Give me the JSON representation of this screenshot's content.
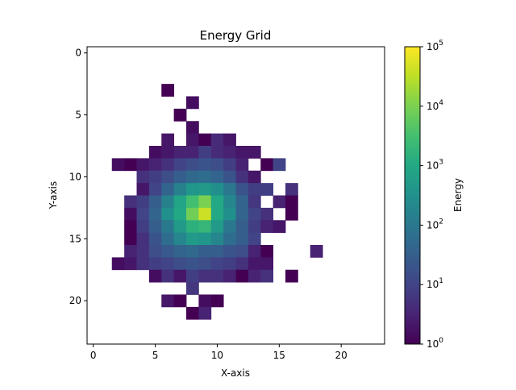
{
  "chart_data": {
    "type": "heatmap",
    "title": "Energy Grid",
    "xlabel": "X-axis",
    "ylabel": "Y-axis",
    "colorbar_label": "Energy",
    "colorbar_scale": "log",
    "colormap": "viridis",
    "x_ticks": [
      0,
      5,
      10,
      15,
      20
    ],
    "y_ticks": [
      0,
      5,
      10,
      15,
      20
    ],
    "colorbar_ticks": [
      {
        "base": "10",
        "exp": "0",
        "value": 1
      },
      {
        "base": "10",
        "exp": "1",
        "value": 10
      },
      {
        "base": "10",
        "exp": "2",
        "value": 100
      },
      {
        "base": "10",
        "exp": "3",
        "value": 1000
      },
      {
        "base": "10",
        "exp": "4",
        "value": 10000
      },
      {
        "base": "10",
        "exp": "5",
        "value": 100000
      }
    ],
    "xlim": [
      -0.5,
      23.5
    ],
    "ylim": [
      23.5,
      -0.5
    ],
    "vmin": 1,
    "vmax": 100000,
    "cells": [
      [
        6,
        3,
        1
      ],
      [
        8,
        4,
        1.5
      ],
      [
        7,
        5,
        1
      ],
      [
        8,
        6,
        1.5
      ],
      [
        6,
        7,
        2
      ],
      [
        8,
        7,
        2
      ],
      [
        9,
        7,
        1
      ],
      [
        10,
        7,
        4
      ],
      [
        11,
        7,
        2
      ],
      [
        5,
        8,
        1.5
      ],
      [
        6,
        8,
        2
      ],
      [
        7,
        8,
        3
      ],
      [
        8,
        8,
        3
      ],
      [
        9,
        8,
        8
      ],
      [
        10,
        8,
        4
      ],
      [
        11,
        8,
        3
      ],
      [
        12,
        8,
        2
      ],
      [
        13,
        8,
        2
      ],
      [
        2,
        9,
        1.5
      ],
      [
        3,
        9,
        1
      ],
      [
        4,
        9,
        2
      ],
      [
        5,
        9,
        3
      ],
      [
        6,
        9,
        5
      ],
      [
        7,
        9,
        10
      ],
      [
        8,
        9,
        15
      ],
      [
        9,
        9,
        20
      ],
      [
        10,
        9,
        15
      ],
      [
        11,
        9,
        8
      ],
      [
        12,
        9,
        3
      ],
      [
        14,
        9,
        1
      ],
      [
        15,
        9,
        10
      ],
      [
        4,
        10,
        5
      ],
      [
        5,
        10,
        8
      ],
      [
        6,
        10,
        15
      ],
      [
        7,
        10,
        30
      ],
      [
        8,
        10,
        50
      ],
      [
        9,
        10,
        60
      ],
      [
        10,
        10,
        40
      ],
      [
        11,
        10,
        20
      ],
      [
        12,
        10,
        5
      ],
      [
        13,
        10,
        2
      ],
      [
        4,
        11,
        2
      ],
      [
        5,
        11,
        10
      ],
      [
        6,
        11,
        40
      ],
      [
        7,
        11,
        150
      ],
      [
        8,
        11,
        400
      ],
      [
        9,
        11,
        500
      ],
      [
        10,
        11,
        300
      ],
      [
        11,
        11,
        100
      ],
      [
        12,
        11,
        20
      ],
      [
        13,
        11,
        8
      ],
      [
        14,
        11,
        8
      ],
      [
        16,
        11,
        5
      ],
      [
        3,
        12,
        5
      ],
      [
        4,
        12,
        8
      ],
      [
        5,
        12,
        30
      ],
      [
        6,
        12,
        150
      ],
      [
        7,
        12,
        800
      ],
      [
        8,
        12,
        3000
      ],
      [
        9,
        12,
        10000
      ],
      [
        10,
        12,
        1000
      ],
      [
        11,
        12,
        200
      ],
      [
        12,
        12,
        40
      ],
      [
        13,
        12,
        6
      ],
      [
        15,
        12,
        3
      ],
      [
        16,
        12,
        1
      ],
      [
        3,
        13,
        1.5
      ],
      [
        4,
        13,
        10
      ],
      [
        5,
        13,
        40
      ],
      [
        6,
        13,
        300
      ],
      [
        7,
        13,
        1000
      ],
      [
        8,
        13,
        8000
      ],
      [
        9,
        13,
        40000
      ],
      [
        10,
        13,
        1000
      ],
      [
        11,
        13,
        300
      ],
      [
        12,
        13,
        40
      ],
      [
        13,
        13,
        10
      ],
      [
        14,
        13,
        5
      ],
      [
        16,
        13,
        1
      ],
      [
        3,
        14,
        1
      ],
      [
        4,
        14,
        8
      ],
      [
        5,
        14,
        30
      ],
      [
        6,
        14,
        100
      ],
      [
        7,
        14,
        500
      ],
      [
        8,
        14,
        1500
      ],
      [
        9,
        14,
        2000
      ],
      [
        10,
        14,
        500
      ],
      [
        11,
        14,
        100
      ],
      [
        12,
        14,
        30
      ],
      [
        13,
        14,
        8
      ],
      [
        14,
        14,
        3
      ],
      [
        15,
        14,
        2
      ],
      [
        3,
        15,
        1
      ],
      [
        4,
        15,
        5
      ],
      [
        5,
        15,
        20
      ],
      [
        6,
        15,
        60
      ],
      [
        7,
        15,
        200
      ],
      [
        8,
        15,
        500
      ],
      [
        9,
        15,
        400
      ],
      [
        10,
        15,
        200
      ],
      [
        11,
        15,
        60
      ],
      [
        12,
        15,
        30
      ],
      [
        13,
        15,
        10
      ],
      [
        3,
        16,
        3
      ],
      [
        4,
        16,
        5
      ],
      [
        5,
        16,
        15
      ],
      [
        6,
        16,
        25
      ],
      [
        7,
        16,
        40
      ],
      [
        8,
        16,
        50
      ],
      [
        9,
        16,
        30
      ],
      [
        10,
        16,
        30
      ],
      [
        11,
        16,
        20
      ],
      [
        12,
        16,
        15
      ],
      [
        13,
        16,
        3
      ],
      [
        14,
        16,
        1
      ],
      [
        18,
        16,
        3
      ],
      [
        2,
        17,
        1.5
      ],
      [
        3,
        17,
        2
      ],
      [
        4,
        17,
        5
      ],
      [
        5,
        17,
        8
      ],
      [
        6,
        17,
        10
      ],
      [
        7,
        17,
        15
      ],
      [
        8,
        17,
        20
      ],
      [
        9,
        17,
        15
      ],
      [
        10,
        17,
        10
      ],
      [
        11,
        17,
        8
      ],
      [
        12,
        17,
        5
      ],
      [
        13,
        17,
        2
      ],
      [
        14,
        17,
        2
      ],
      [
        5,
        18,
        1.5
      ],
      [
        6,
        18,
        5
      ],
      [
        7,
        18,
        2
      ],
      [
        8,
        18,
        8
      ],
      [
        9,
        18,
        5
      ],
      [
        10,
        18,
        5
      ],
      [
        11,
        18,
        3
      ],
      [
        12,
        18,
        1
      ],
      [
        13,
        18,
        3
      ],
      [
        14,
        18,
        5
      ],
      [
        16,
        18,
        1
      ],
      [
        8,
        19,
        6
      ],
      [
        6,
        20,
        2
      ],
      [
        7,
        20,
        1
      ],
      [
        9,
        20,
        1.5
      ],
      [
        10,
        20,
        1
      ],
      [
        8,
        21,
        1
      ],
      [
        9,
        21,
        3
      ]
    ]
  }
}
